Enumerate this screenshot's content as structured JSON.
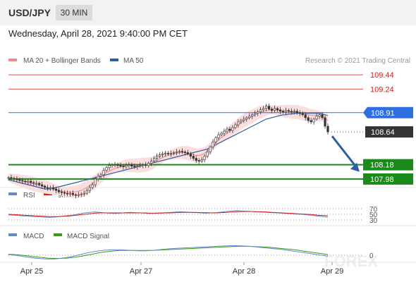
{
  "header": {
    "symbol": "USD/JPY",
    "timeframe": "30 MIN"
  },
  "datetime": "Wednesday, April 28, 2021 9:40:00 PM CET",
  "legend": {
    "ma_bb": "MA 20 + Bollinger Bands",
    "ma50": "MA 50",
    "copyright": "Research © 2021 Trading Central",
    "rsi": "RSI",
    "rsi_ma": "9MA",
    "macd": "MACD",
    "macd_signal": "MACD Signal"
  },
  "watermark": "FOREX",
  "colors": {
    "resistance": "#e05555",
    "ma50": "#2f5f9e",
    "ma20": "#f08a8a",
    "bollinger_fill": "#fbdede",
    "support": "#1a8a1a",
    "pivot": "#2f6fdf",
    "last_price": "#333333",
    "rsi": "#6688cc",
    "macd": "#6688cc",
    "macd_signal": "#3a9a1a"
  },
  "chart_data": {
    "type": "candlestick",
    "x_ticks": [
      "Apr 25",
      "Apr 27",
      "Apr 28",
      "Apr 29"
    ],
    "ylim": [
      107.9,
      109.55
    ],
    "price_levels": [
      {
        "label": "109.44",
        "value": 109.44,
        "kind": "resistance"
      },
      {
        "label": "109.24",
        "value": 109.24,
        "kind": "resistance"
      },
      {
        "label": "108.91",
        "value": 108.91,
        "kind": "pivot"
      },
      {
        "label": "108.64",
        "value": 108.64,
        "kind": "last"
      },
      {
        "label": "108.18",
        "value": 108.18,
        "kind": "support"
      },
      {
        "label": "107.98",
        "value": 107.98,
        "kind": "support"
      }
    ],
    "close_series": [
      108.0,
      107.99,
      107.98,
      107.97,
      107.96,
      107.95,
      107.94,
      107.95,
      107.93,
      107.92,
      107.92,
      107.9,
      107.88,
      107.86,
      107.85,
      107.86,
      107.84,
      107.82,
      107.8,
      107.79,
      107.78,
      107.77,
      107.78,
      107.76,
      107.75,
      107.76,
      107.77,
      107.78,
      107.82,
      107.86,
      107.9,
      107.98,
      108.02,
      108.04,
      108.1,
      108.14,
      108.17,
      108.18,
      108.18,
      108.17,
      108.16,
      108.15,
      108.17,
      108.18,
      108.16,
      108.15,
      108.16,
      108.17,
      108.18,
      108.17,
      108.2,
      108.23,
      108.27,
      108.3,
      108.32,
      108.33,
      108.34,
      108.33,
      108.34,
      108.35,
      108.36,
      108.37,
      108.36,
      108.35,
      108.33,
      108.3,
      108.27,
      108.24,
      108.23,
      108.25,
      108.3,
      108.36,
      108.43,
      108.5,
      108.56,
      108.6,
      108.62,
      108.65,
      108.68,
      108.66,
      108.7,
      108.74,
      108.78,
      108.8,
      108.82,
      108.84,
      108.86,
      108.88,
      108.9,
      108.92,
      108.95,
      108.97,
      109.0,
      108.96,
      108.94,
      108.97,
      108.95,
      108.93,
      108.92,
      108.94,
      108.93,
      108.92,
      108.93,
      108.91,
      108.9,
      108.88,
      108.84,
      108.8,
      108.78,
      108.82,
      108.86,
      108.88,
      108.84,
      108.72,
      108.64
    ],
    "ma20": [
      108.0,
      107.99,
      107.98,
      107.97,
      107.96,
      107.95,
      107.94,
      107.93,
      107.92,
      107.91,
      107.9,
      107.89,
      107.88,
      107.87,
      107.86,
      107.85,
      107.84,
      107.83,
      107.82,
      107.81,
      107.8,
      107.8,
      107.8,
      107.8,
      107.8,
      107.81,
      107.82,
      107.84,
      107.86,
      107.89,
      107.92,
      107.95,
      107.98,
      108.01,
      108.04,
      108.07,
      108.09,
      108.11,
      108.13,
      108.14,
      108.15,
      108.16,
      108.17,
      108.17,
      108.17,
      108.17,
      108.17,
      108.17,
      108.18,
      108.18,
      108.19,
      108.2,
      108.22,
      108.24,
      108.26,
      108.28,
      108.3,
      108.31,
      108.32,
      108.33,
      108.34,
      108.35,
      108.35,
      108.35,
      108.34,
      108.33,
      108.32,
      108.31,
      108.31,
      108.32,
      108.34,
      108.37,
      108.41,
      108.45,
      108.49,
      108.53,
      108.56,
      108.59,
      108.62,
      108.65,
      108.68,
      108.71,
      108.74,
      108.77,
      108.8,
      108.82,
      108.84,
      108.86,
      108.88,
      108.9,
      108.92,
      108.93,
      108.94,
      108.95,
      108.95,
      108.95,
      108.94,
      108.94,
      108.93,
      108.93,
      108.93,
      108.92,
      108.92,
      108.92,
      108.91,
      108.9,
      108.89,
      108.88,
      108.87,
      108.87,
      108.87,
      108.86,
      108.85,
      108.83,
      108.8
    ],
    "ma50": [
      107.97,
      107.96,
      107.95,
      107.94,
      107.93,
      107.92,
      107.91,
      107.9,
      107.89,
      107.88,
      107.87,
      107.86,
      107.85,
      107.84,
      107.84,
      107.84,
      107.85,
      107.86,
      107.87,
      107.88,
      107.89,
      107.9,
      107.91,
      107.92,
      107.93,
      107.94,
      107.95,
      107.96,
      107.97,
      107.98,
      107.99,
      108.0,
      108.01,
      108.02,
      108.03,
      108.04,
      108.05,
      108.06,
      108.07,
      108.08,
      108.09,
      108.1,
      108.11,
      108.12,
      108.13,
      108.14,
      108.15,
      108.16,
      108.17,
      108.18,
      108.19,
      108.2,
      108.21,
      108.22,
      108.23,
      108.24,
      108.25,
      108.26,
      108.27,
      108.28,
      108.29,
      108.3,
      108.31,
      108.32,
      108.33,
      108.34,
      108.35,
      108.36,
      108.37,
      108.38,
      108.39,
      108.4,
      108.42,
      108.44,
      108.46,
      108.48,
      108.5,
      108.52,
      108.54,
      108.56,
      108.58,
      108.6,
      108.62,
      108.64,
      108.66,
      108.68,
      108.7,
      108.72,
      108.74,
      108.76,
      108.78,
      108.8,
      108.82,
      108.83,
      108.84,
      108.85,
      108.86,
      108.87,
      108.88,
      108.88,
      108.89,
      108.89,
      108.9,
      108.9,
      108.9,
      108.9,
      108.9,
      108.9,
      108.9,
      108.9,
      108.9,
      108.9,
      108.89,
      108.88,
      108.87
    ],
    "rsi": {
      "levels": [
        "70",
        "50",
        "30"
      ],
      "values": [
        48,
        47,
        46,
        44,
        43,
        42,
        41,
        40,
        39,
        40,
        42,
        44,
        46,
        48,
        52,
        55,
        57,
        58,
        57,
        55,
        54,
        53,
        54,
        56,
        57,
        56,
        55,
        54,
        53,
        54,
        55,
        56,
        57,
        58,
        59,
        58,
        57,
        56,
        55,
        54,
        55,
        56,
        58,
        60,
        62,
        63,
        62,
        61,
        60,
        59,
        58,
        57,
        56,
        55,
        54,
        53,
        52,
        51,
        50,
        48,
        46,
        44,
        42,
        40
      ],
      "ma": [
        50,
        49,
        48,
        47,
        46,
        45,
        44,
        43,
        42,
        42,
        42,
        43,
        44,
        46,
        48,
        50,
        52,
        54,
        55,
        55,
        55,
        55,
        55,
        55,
        55,
        55,
        55,
        55,
        54,
        54,
        54,
        55,
        55,
        56,
        57,
        57,
        57,
        57,
        56,
        56,
        55,
        55,
        56,
        57,
        58,
        59,
        60,
        60,
        60,
        59,
        59,
        58,
        57,
        56,
        55,
        54,
        53,
        52,
        51,
        50,
        49,
        47,
        46,
        45
      ]
    },
    "macd": {
      "zero_label": "0",
      "macd": [
        0.02,
        0.0,
        -0.03,
        -0.06,
        -0.09,
        -0.11,
        -0.12,
        -0.12,
        -0.1,
        -0.07,
        -0.03,
        0.02,
        0.07,
        0.11,
        0.14,
        0.16,
        0.17,
        0.17,
        0.16,
        0.15,
        0.14,
        0.14,
        0.15,
        0.17,
        0.19,
        0.21,
        0.22,
        0.23,
        0.24,
        0.25,
        0.26,
        0.27,
        0.28,
        0.29,
        0.3,
        0.3,
        0.29,
        0.28,
        0.26,
        0.24,
        0.22,
        0.2,
        0.18,
        0.15,
        0.12,
        0.09,
        0.06,
        0.03,
        0.0,
        -0.03
      ],
      "signal": [
        0.03,
        0.02,
        0.0,
        -0.02,
        -0.05,
        -0.07,
        -0.09,
        -0.1,
        -0.1,
        -0.09,
        -0.07,
        -0.04,
        0.0,
        0.04,
        0.08,
        0.11,
        0.13,
        0.15,
        0.15,
        0.15,
        0.15,
        0.15,
        0.15,
        0.16,
        0.17,
        0.18,
        0.19,
        0.2,
        0.21,
        0.22,
        0.23,
        0.24,
        0.25,
        0.26,
        0.27,
        0.28,
        0.28,
        0.28,
        0.27,
        0.26,
        0.25,
        0.23,
        0.21,
        0.19,
        0.17,
        0.14,
        0.11,
        0.08,
        0.05,
        0.02
      ]
    }
  }
}
